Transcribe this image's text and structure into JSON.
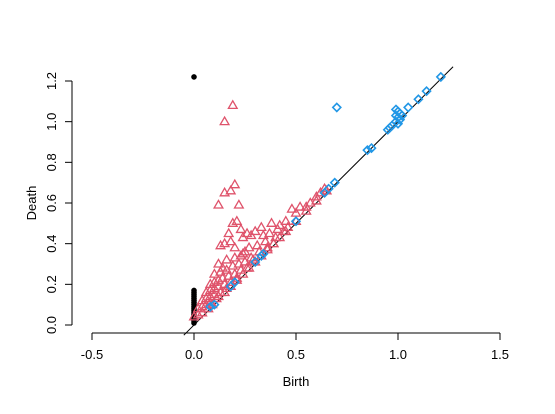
{
  "chart_data": {
    "type": "scatter",
    "title": "",
    "xlabel": "Birth",
    "ylabel": "Death",
    "xlim": [
      -0.5,
      1.5
    ],
    "ylim": [
      0.0,
      1.2
    ],
    "grid": false,
    "legend": "none",
    "x_ticks": [
      -0.5,
      0.0,
      0.5,
      1.0,
      1.5
    ],
    "x_tick_labels": [
      "-0.5",
      "0.0",
      "0.5",
      "1.0",
      "1.5"
    ],
    "y_ticks": [
      0.0,
      0.2,
      0.4,
      0.6,
      0.8,
      1.0,
      1.2
    ],
    "y_tick_labels": [
      "0.0",
      "0.2",
      "0.4",
      "0.6",
      "0.8",
      "1.0",
      "1.2"
    ],
    "diagonal": {
      "from": [
        -0.05,
        -0.05
      ],
      "to": [
        1.27,
        1.27
      ],
      "color": "#000000"
    },
    "series": [
      {
        "marker": "circle-filled",
        "color": "#000000",
        "points": [
          [
            0.0,
            1.22
          ],
          [
            0.0,
            0.17
          ],
          [
            0.0,
            0.16
          ],
          [
            0.0,
            0.15
          ],
          [
            0.0,
            0.14
          ],
          [
            0.0,
            0.13
          ],
          [
            0.0,
            0.12
          ],
          [
            0.0,
            0.11
          ],
          [
            0.0,
            0.1
          ],
          [
            0.0,
            0.09
          ],
          [
            0.0,
            0.08
          ],
          [
            0.0,
            0.07
          ],
          [
            0.0,
            0.06
          ],
          [
            0.0,
            0.05
          ],
          [
            0.0,
            0.04
          ],
          [
            0.0,
            0.03
          ],
          [
            0.0,
            0.02
          ],
          [
            0.0,
            0.01
          ]
        ]
      },
      {
        "marker": "triangle-open",
        "color": "#DF536B",
        "points": [
          [
            0.19,
            1.08
          ],
          [
            0.15,
            1.0
          ],
          [
            0.2,
            0.69
          ],
          [
            0.18,
            0.66
          ],
          [
            0.15,
            0.65
          ],
          [
            0.12,
            0.59
          ],
          [
            0.22,
            0.59
          ],
          [
            0.19,
            0.5
          ],
          [
            0.21,
            0.51
          ],
          [
            0.23,
            0.47
          ],
          [
            0.17,
            0.45
          ],
          [
            0.24,
            0.43
          ],
          [
            0.18,
            0.41
          ],
          [
            0.15,
            0.4
          ],
          [
            0.13,
            0.39
          ],
          [
            0.2,
            0.38
          ],
          [
            0.26,
            0.45
          ],
          [
            0.28,
            0.44
          ],
          [
            0.3,
            0.46
          ],
          [
            0.33,
            0.48
          ],
          [
            0.38,
            0.5
          ],
          [
            0.42,
            0.49
          ],
          [
            0.45,
            0.51
          ],
          [
            0.5,
            0.55
          ],
          [
            0.48,
            0.57
          ],
          [
            0.52,
            0.58
          ],
          [
            0.55,
            0.58
          ],
          [
            0.57,
            0.6
          ],
          [
            0.6,
            0.63
          ],
          [
            0.62,
            0.65
          ],
          [
            0.64,
            0.67
          ],
          [
            0.27,
            0.38
          ],
          [
            0.31,
            0.39
          ],
          [
            0.35,
            0.41
          ],
          [
            0.4,
            0.43
          ],
          [
            0.44,
            0.46
          ],
          [
            0.46,
            0.48
          ],
          [
            0.12,
            0.3
          ],
          [
            0.16,
            0.32
          ],
          [
            0.2,
            0.33
          ],
          [
            0.23,
            0.34
          ],
          [
            0.25,
            0.36
          ],
          [
            0.28,
            0.33
          ],
          [
            0.32,
            0.36
          ],
          [
            0.36,
            0.38
          ],
          [
            0.39,
            0.4
          ],
          [
            0.1,
            0.25
          ],
          [
            0.13,
            0.26
          ],
          [
            0.16,
            0.27
          ],
          [
            0.19,
            0.29
          ],
          [
            0.22,
            0.3
          ],
          [
            0.25,
            0.31
          ],
          [
            0.29,
            0.32
          ],
          [
            0.08,
            0.2
          ],
          [
            0.1,
            0.21
          ],
          [
            0.12,
            0.22
          ],
          [
            0.14,
            0.23
          ],
          [
            0.17,
            0.24
          ],
          [
            0.2,
            0.25
          ],
          [
            0.23,
            0.27
          ],
          [
            0.26,
            0.28
          ],
          [
            0.06,
            0.16
          ],
          [
            0.08,
            0.17
          ],
          [
            0.1,
            0.18
          ],
          [
            0.12,
            0.19
          ],
          [
            0.15,
            0.2
          ],
          [
            0.18,
            0.21
          ],
          [
            0.21,
            0.23
          ],
          [
            0.04,
            0.12
          ],
          [
            0.06,
            0.13
          ],
          [
            0.08,
            0.14
          ],
          [
            0.1,
            0.15
          ],
          [
            0.13,
            0.16
          ],
          [
            0.16,
            0.18
          ],
          [
            0.02,
            0.08
          ],
          [
            0.04,
            0.09
          ],
          [
            0.06,
            0.1
          ],
          [
            0.08,
            0.11
          ],
          [
            0.11,
            0.13
          ],
          [
            0.0,
            0.04
          ],
          [
            0.02,
            0.05
          ],
          [
            0.04,
            0.06
          ],
          [
            0.07,
            0.08
          ],
          [
            0.09,
            0.1
          ],
          [
            0.12,
            0.14
          ],
          [
            0.15,
            0.16
          ],
          [
            0.18,
            0.19
          ],
          [
            0.21,
            0.22
          ],
          [
            0.24,
            0.25
          ],
          [
            0.27,
            0.28
          ],
          [
            0.3,
            0.31
          ],
          [
            0.33,
            0.34
          ],
          [
            0.36,
            0.37
          ],
          [
            0.39,
            0.4
          ],
          [
            0.42,
            0.43
          ],
          [
            0.45,
            0.46
          ],
          [
            0.5,
            0.51
          ],
          [
            0.55,
            0.56
          ],
          [
            0.6,
            0.61
          ],
          [
            0.65,
            0.66
          ],
          [
            0.14,
            0.28
          ],
          [
            0.24,
            0.35
          ],
          [
            0.34,
            0.44
          ],
          [
            0.37,
            0.45
          ],
          [
            0.41,
            0.47
          ]
        ]
      },
      {
        "marker": "diamond-open",
        "color": "#2297E6",
        "points": [
          [
            1.21,
            1.22
          ],
          [
            1.14,
            1.15
          ],
          [
            1.1,
            1.11
          ],
          [
            1.05,
            1.07
          ],
          [
            0.7,
            1.07
          ],
          [
            0.99,
            1.06
          ],
          [
            1.0,
            1.05
          ],
          [
            1.01,
            1.04
          ],
          [
            0.99,
            1.03
          ],
          [
            1.0,
            1.02
          ],
          [
            1.01,
            1.01
          ],
          [
            0.99,
            1.0
          ],
          [
            1.0,
            0.99
          ],
          [
            0.97,
            0.98
          ],
          [
            0.96,
            0.97
          ],
          [
            0.95,
            0.96
          ],
          [
            0.87,
            0.87
          ],
          [
            0.85,
            0.86
          ],
          [
            0.69,
            0.7
          ],
          [
            0.66,
            0.67
          ],
          [
            0.64,
            0.65
          ],
          [
            0.33,
            0.34
          ],
          [
            0.34,
            0.35
          ],
          [
            0.2,
            0.21
          ],
          [
            0.18,
            0.19
          ],
          [
            0.1,
            0.1
          ],
          [
            0.08,
            0.09
          ],
          [
            0.3,
            0.31
          ],
          [
            0.5,
            0.51
          ],
          [
            1.02,
            1.03
          ]
        ]
      }
    ]
  }
}
